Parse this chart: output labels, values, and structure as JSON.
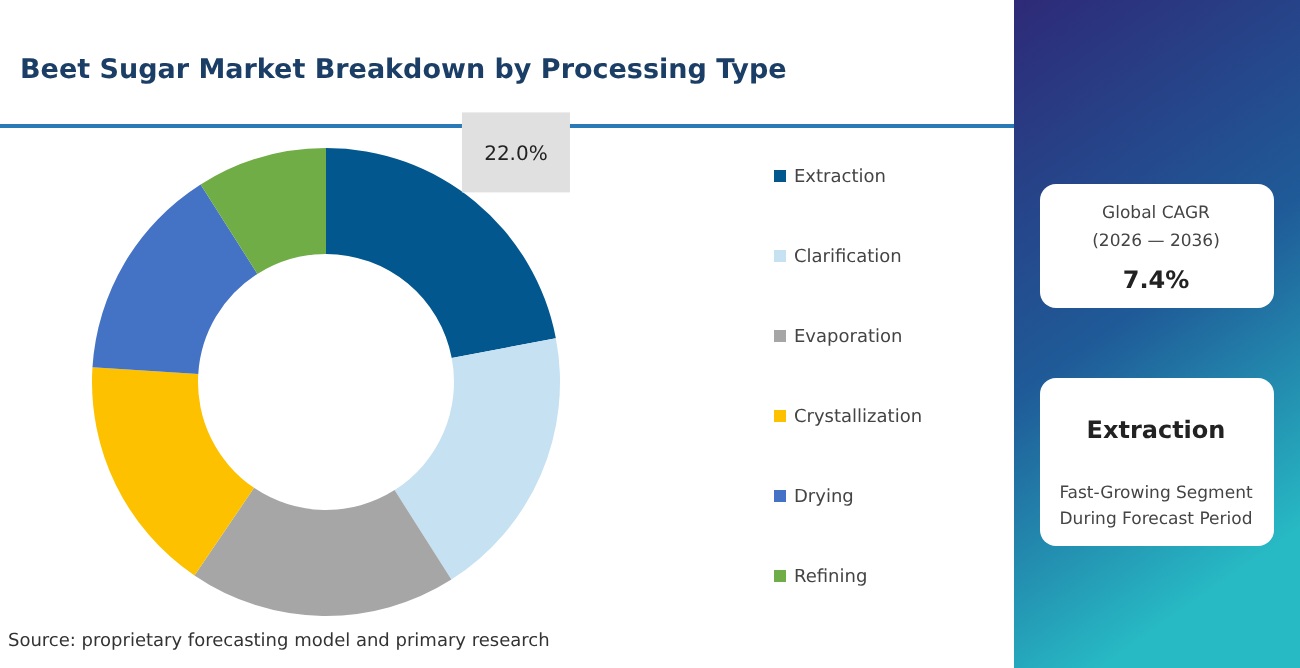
{
  "chart_data": {
    "type": "donut",
    "title": "Beet Sugar Market Breakdown by Processing Type",
    "categories": [
      "Extraction",
      "Clarification",
      "Evaporation",
      "Crystallization",
      "Drying",
      "Refining"
    ],
    "values": [
      22,
      19,
      18.5,
      16.5,
      15,
      9
    ],
    "colors": [
      "#02578f",
      "#c5e1f2",
      "#a6a6a6",
      "#fdc100",
      "#4472c4",
      "#70ad47"
    ],
    "value_labels": [
      "22.0%",
      null,
      null,
      null,
      null,
      null
    ],
    "legend": "right",
    "annotations": [
      "Source: proprietary forecasting model and primary research",
      "Global CAGR",
      "(2026 — 2036)",
      "7.4%",
      "Extraction",
      "Fast-Growing Segment",
      "During Forecast Period"
    ]
  }
}
